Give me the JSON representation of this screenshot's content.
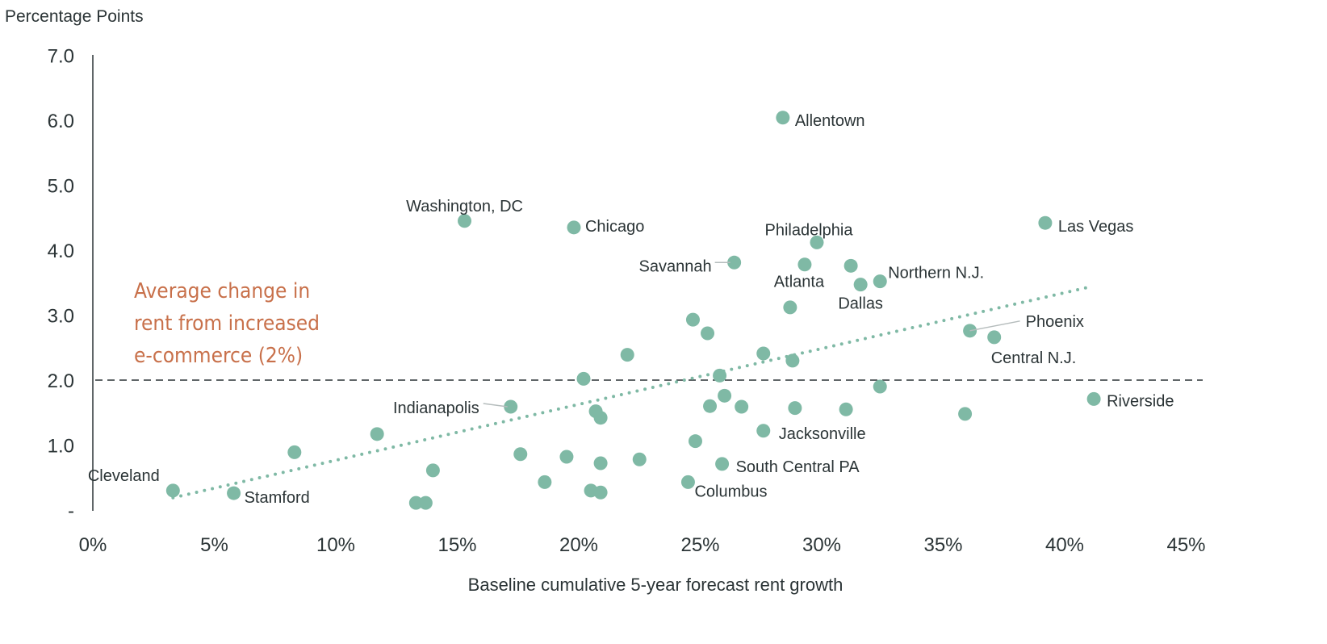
{
  "chart_data": {
    "type": "scatter",
    "ylabel": "Percentage Points",
    "xlabel": "Baseline cumulative 5-year forecast rent growth",
    "xlim": [
      0,
      45
    ],
    "ylim": [
      0,
      7
    ],
    "x_ticks": [
      "0%",
      "5%",
      "10%",
      "15%",
      "20%",
      "25%",
      "30%",
      "35%",
      "40%",
      "45%"
    ],
    "x_tick_values": [
      0,
      5,
      10,
      15,
      20,
      25,
      30,
      35,
      40,
      45
    ],
    "y_ticks": [
      "-",
      "1.0",
      "2.0",
      "3.0",
      "4.0",
      "5.0",
      "6.0",
      "7.0"
    ],
    "y_tick_values": [
      0,
      1,
      2,
      3,
      4,
      5,
      6,
      7
    ],
    "grid": false,
    "point_color": "#7fb9a5",
    "reference_line": {
      "y": 2.0,
      "style": "dashed",
      "color": "#2b3436"
    },
    "annotation": {
      "lines": [
        "Average change in",
        "rent from increased",
        "e-commerce (2%)"
      ],
      "color": "#c8704a"
    },
    "trendline": {
      "style": "dotted",
      "color": "#7fb9a5",
      "points": [
        [
          3.3,
          0.19
        ],
        [
          41.1,
          3.44
        ]
      ]
    },
    "points": [
      {
        "x": 28.4,
        "y": 6.04,
        "label": "Allentown"
      },
      {
        "x": 15.3,
        "y": 4.45,
        "label": "Washington, DC"
      },
      {
        "x": 19.8,
        "y": 4.35,
        "label": "Chicago"
      },
      {
        "x": 39.2,
        "y": 4.42,
        "label": "Las Vegas"
      },
      {
        "x": 29.8,
        "y": 4.12,
        "label": "Philadelphia"
      },
      {
        "x": 26.4,
        "y": 3.81,
        "label": "Savannah"
      },
      {
        "x": 29.3,
        "y": 3.78,
        "label": "Atlanta"
      },
      {
        "x": 31.2,
        "y": 3.76
      },
      {
        "x": 31.6,
        "y": 3.47,
        "label": "Dallas"
      },
      {
        "x": 32.4,
        "y": 3.52,
        "label": "Northern N.J."
      },
      {
        "x": 28.7,
        "y": 3.12
      },
      {
        "x": 24.7,
        "y": 2.93
      },
      {
        "x": 25.3,
        "y": 2.72
      },
      {
        "x": 36.1,
        "y": 2.76,
        "label": "Phoenix"
      },
      {
        "x": 37.1,
        "y": 2.66,
        "label": "Central N.J."
      },
      {
        "x": 22.0,
        "y": 2.39
      },
      {
        "x": 27.6,
        "y": 2.41
      },
      {
        "x": 28.8,
        "y": 2.3
      },
      {
        "x": 20.2,
        "y": 2.02
      },
      {
        "x": 25.8,
        "y": 2.07
      },
      {
        "x": 32.4,
        "y": 1.9
      },
      {
        "x": 26.0,
        "y": 1.76
      },
      {
        "x": 25.4,
        "y": 1.6
      },
      {
        "x": 26.7,
        "y": 1.59
      },
      {
        "x": 28.9,
        "y": 1.57
      },
      {
        "x": 31.0,
        "y": 1.55
      },
      {
        "x": 41.2,
        "y": 1.71,
        "label": "Riverside"
      },
      {
        "x": 35.9,
        "y": 1.48
      },
      {
        "x": 17.2,
        "y": 1.59,
        "label": "Indianapolis"
      },
      {
        "x": 20.7,
        "y": 1.52
      },
      {
        "x": 20.9,
        "y": 1.42
      },
      {
        "x": 27.6,
        "y": 1.22,
        "label": "Jacksonville"
      },
      {
        "x": 11.7,
        "y": 1.17
      },
      {
        "x": 24.8,
        "y": 1.06
      },
      {
        "x": 8.3,
        "y": 0.89
      },
      {
        "x": 17.6,
        "y": 0.86
      },
      {
        "x": 19.5,
        "y": 0.82
      },
      {
        "x": 22.5,
        "y": 0.78
      },
      {
        "x": 20.9,
        "y": 0.72
      },
      {
        "x": 25.9,
        "y": 0.71,
        "label": "South Central PA"
      },
      {
        "x": 14.0,
        "y": 0.61
      },
      {
        "x": 18.6,
        "y": 0.43
      },
      {
        "x": 24.5,
        "y": 0.43,
        "label": "Columbus"
      },
      {
        "x": 20.5,
        "y": 0.3
      },
      {
        "x": 20.9,
        "y": 0.27
      },
      {
        "x": 3.3,
        "y": 0.3,
        "label": "Cleveland"
      },
      {
        "x": 5.8,
        "y": 0.26,
        "label": "Stamford"
      },
      {
        "x": 13.3,
        "y": 0.11
      },
      {
        "x": 13.7,
        "y": 0.11
      }
    ]
  }
}
